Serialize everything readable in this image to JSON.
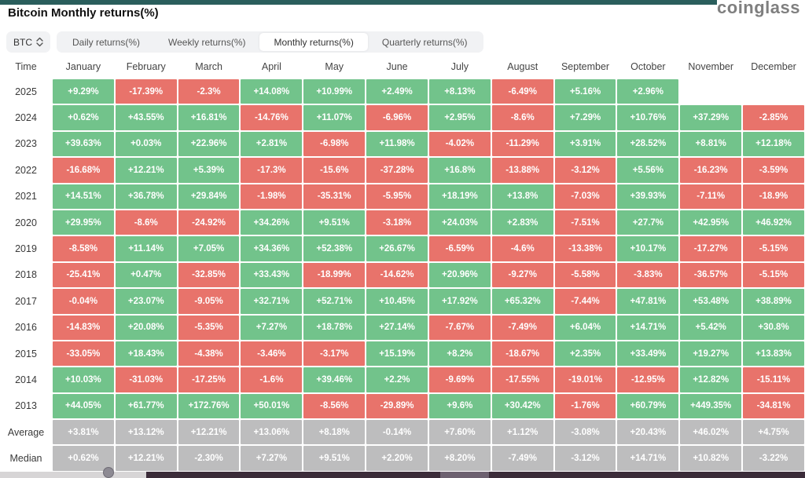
{
  "logo": "coinglass",
  "title": "Bitcoin Monthly returns(%)",
  "controls": {
    "symbol_selector": "BTC",
    "tabs": [
      {
        "label": "Daily returns(%)",
        "active": false
      },
      {
        "label": "Weekly returns(%)",
        "active": false
      },
      {
        "label": "Monthly returns(%)",
        "active": true
      },
      {
        "label": "Quarterly returns(%)",
        "active": false
      }
    ]
  },
  "colors": {
    "positive": "#72C38B",
    "negative": "#E8736B",
    "stat": "#BDBDBE",
    "topbar": "#2A5E5C"
  },
  "table": {
    "time_header": "Time",
    "months": [
      "January",
      "February",
      "March",
      "April",
      "May",
      "June",
      "July",
      "August",
      "September",
      "October",
      "November",
      "December"
    ],
    "rows": [
      {
        "label": "2025",
        "type": "year",
        "values": [
          "+9.29%",
          "-17.39%",
          "-2.3%",
          "+14.08%",
          "+10.99%",
          "+2.49%",
          "+8.13%",
          "-6.49%",
          "+5.16%",
          "+2.96%",
          "",
          ""
        ]
      },
      {
        "label": "2024",
        "type": "year",
        "values": [
          "+0.62%",
          "+43.55%",
          "+16.81%",
          "-14.76%",
          "+11.07%",
          "-6.96%",
          "+2.95%",
          "-8.6%",
          "+7.29%",
          "+10.76%",
          "+37.29%",
          "-2.85%"
        ]
      },
      {
        "label": "2023",
        "type": "year",
        "values": [
          "+39.63%",
          "+0.03%",
          "+22.96%",
          "+2.81%",
          "-6.98%",
          "+11.98%",
          "-4.02%",
          "-11.29%",
          "+3.91%",
          "+28.52%",
          "+8.81%",
          "+12.18%"
        ]
      },
      {
        "label": "2022",
        "type": "year",
        "values": [
          "-16.68%",
          "+12.21%",
          "+5.39%",
          "-17.3%",
          "-15.6%",
          "-37.28%",
          "+16.8%",
          "-13.88%",
          "-3.12%",
          "+5.56%",
          "-16.23%",
          "-3.59%"
        ]
      },
      {
        "label": "2021",
        "type": "year",
        "values": [
          "+14.51%",
          "+36.78%",
          "+29.84%",
          "-1.98%",
          "-35.31%",
          "-5.95%",
          "+18.19%",
          "+13.8%",
          "-7.03%",
          "+39.93%",
          "-7.11%",
          "-18.9%"
        ]
      },
      {
        "label": "2020",
        "type": "year",
        "values": [
          "+29.95%",
          "-8.6%",
          "-24.92%",
          "+34.26%",
          "+9.51%",
          "-3.18%",
          "+24.03%",
          "+2.83%",
          "-7.51%",
          "+27.7%",
          "+42.95%",
          "+46.92%"
        ]
      },
      {
        "label": "2019",
        "type": "year",
        "values": [
          "-8.58%",
          "+11.14%",
          "+7.05%",
          "+34.36%",
          "+52.38%",
          "+26.67%",
          "-6.59%",
          "-4.6%",
          "-13.38%",
          "+10.17%",
          "-17.27%",
          "-5.15%"
        ]
      },
      {
        "label": "2018",
        "type": "year",
        "values": [
          "-25.41%",
          "+0.47%",
          "-32.85%",
          "+33.43%",
          "-18.99%",
          "-14.62%",
          "+20.96%",
          "-9.27%",
          "-5.58%",
          "-3.83%",
          "-36.57%",
          "-5.15%"
        ]
      },
      {
        "label": "2017",
        "type": "year",
        "values": [
          "-0.04%",
          "+23.07%",
          "-9.05%",
          "+32.71%",
          "+52.71%",
          "+10.45%",
          "+17.92%",
          "+65.32%",
          "-7.44%",
          "+47.81%",
          "+53.48%",
          "+38.89%"
        ]
      },
      {
        "label": "2016",
        "type": "year",
        "values": [
          "-14.83%",
          "+20.08%",
          "-5.35%",
          "+7.27%",
          "+18.78%",
          "+27.14%",
          "-7.67%",
          "-7.49%",
          "+6.04%",
          "+14.71%",
          "+5.42%",
          "+30.8%"
        ]
      },
      {
        "label": "2015",
        "type": "year",
        "values": [
          "-33.05%",
          "+18.43%",
          "-4.38%",
          "-3.46%",
          "-3.17%",
          "+15.19%",
          "+8.2%",
          "-18.67%",
          "+2.35%",
          "+33.49%",
          "+19.27%",
          "+13.83%"
        ]
      },
      {
        "label": "2014",
        "type": "year",
        "values": [
          "+10.03%",
          "-31.03%",
          "-17.25%",
          "-1.6%",
          "+39.46%",
          "+2.2%",
          "-9.69%",
          "-17.55%",
          "-19.01%",
          "-12.95%",
          "+12.82%",
          "-15.11%"
        ]
      },
      {
        "label": "2013",
        "type": "year",
        "values": [
          "+44.05%",
          "+61.77%",
          "+172.76%",
          "+50.01%",
          "-8.56%",
          "-29.89%",
          "+9.6%",
          "+30.42%",
          "-1.76%",
          "+60.79%",
          "+449.35%",
          "-34.81%"
        ]
      },
      {
        "label": "Average",
        "type": "stat",
        "values": [
          "+3.81%",
          "+13.12%",
          "+12.21%",
          "+13.06%",
          "+8.18%",
          "-0.14%",
          "+7.60%",
          "+1.12%",
          "-3.08%",
          "+20.43%",
          "+46.02%",
          "+4.75%"
        ]
      },
      {
        "label": "Median",
        "type": "stat",
        "values": [
          "+0.62%",
          "+12.21%",
          "-2.30%",
          "+7.27%",
          "+9.51%",
          "+2.20%",
          "+8.20%",
          "-7.49%",
          "-3.12%",
          "+14.71%",
          "+10.82%",
          "-3.22%"
        ]
      }
    ]
  }
}
